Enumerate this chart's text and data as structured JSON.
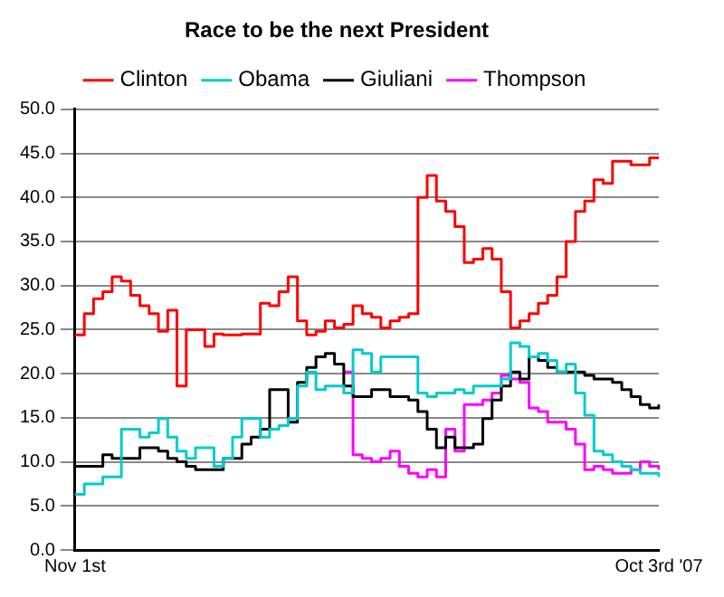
{
  "chart_data": {
    "type": "step",
    "title": "Race to be the next President",
    "categories": [
      "Nov 1st",
      null,
      null,
      null,
      null,
      null,
      null,
      null,
      null,
      null,
      null,
      null,
      null,
      null,
      null,
      null,
      null,
      null,
      null,
      null,
      null,
      null,
      null,
      null,
      null,
      null,
      null,
      null,
      null,
      null,
      null,
      null,
      null,
      null,
      null,
      null,
      null,
      null,
      null,
      null,
      null,
      null,
      null,
      null,
      null,
      null,
      null,
      null,
      null,
      null,
      null,
      null,
      null,
      null,
      null,
      null,
      null,
      null,
      null,
      null,
      null,
      null,
      null,
      "Oct 3rd '07"
    ],
    "series": [
      {
        "name": "Clinton",
        "color": "#ff0000",
        "values": [
          24.4,
          26.8,
          28.5,
          29.3,
          31.0,
          30.5,
          28.9,
          27.7,
          26.8,
          24.8,
          27.2,
          18.6,
          25.0,
          25.0,
          23.1,
          24.5,
          24.4,
          24.4,
          24.5,
          24.5,
          28.0,
          27.7,
          29.3,
          31.0,
          26.0,
          24.4,
          24.8,
          26.0,
          25.2,
          25.6,
          27.7,
          26.8,
          26.4,
          25.2,
          26.0,
          26.4,
          26.8,
          40.0,
          42.5,
          39.6,
          38.4,
          36.7,
          32.6,
          33.0,
          34.2,
          33.0,
          29.3,
          25.2,
          26.0,
          26.8,
          28.0,
          28.9,
          31.0,
          35.0,
          38.4,
          39.6,
          42.0,
          41.6,
          44.1,
          44.1,
          43.7,
          43.7,
          44.5,
          44.5
        ]
      },
      {
        "name": "Obama",
        "color": "#00cccc",
        "values": [
          6.3,
          7.5,
          7.5,
          8.3,
          8.3,
          13.7,
          13.7,
          12.8,
          13.3,
          14.9,
          12.8,
          11.2,
          10.4,
          11.6,
          11.6,
          9.5,
          10.4,
          12.8,
          14.9,
          14.9,
          12.8,
          13.7,
          14.1,
          14.9,
          18.6,
          20.2,
          18.2,
          18.6,
          18.6,
          17.8,
          22.7,
          22.3,
          20.2,
          21.9,
          21.9,
          21.9,
          21.9,
          17.8,
          17.4,
          17.8,
          17.8,
          18.2,
          17.8,
          18.6,
          18.6,
          18.6,
          19.4,
          23.5,
          23.1,
          21.9,
          22.3,
          21.5,
          20.2,
          21.1,
          17.8,
          15.3,
          11.2,
          10.8,
          10.0,
          9.5,
          9.1,
          8.7,
          8.7,
          8.3
        ]
      },
      {
        "name": "Giuliani",
        "color": "#000000",
        "values": [
          9.5,
          9.5,
          9.5,
          10.8,
          10.4,
          10.4,
          10.4,
          11.6,
          11.6,
          11.2,
          10.4,
          10.0,
          9.5,
          9.1,
          9.1,
          9.1,
          10.4,
          10.4,
          12.0,
          12.8,
          13.7,
          18.2,
          18.2,
          14.5,
          19.0,
          20.7,
          21.9,
          22.3,
          21.1,
          18.6,
          17.4,
          17.4,
          18.2,
          18.2,
          17.4,
          17.4,
          17.0,
          15.7,
          13.7,
          11.6,
          12.8,
          11.6,
          11.6,
          12.0,
          14.9,
          17.0,
          18.6,
          20.2,
          19.4,
          21.9,
          21.5,
          20.7,
          20.2,
          20.2,
          20.2,
          19.8,
          19.4,
          19.4,
          19.0,
          18.2,
          17.4,
          16.5,
          16.1,
          16.5
        ]
      },
      {
        "name": "Thompson",
        "color": "#ff00ff",
        "values": [
          null,
          null,
          null,
          null,
          null,
          null,
          null,
          null,
          null,
          null,
          null,
          null,
          null,
          null,
          null,
          null,
          null,
          null,
          null,
          null,
          null,
          null,
          null,
          null,
          null,
          null,
          null,
          null,
          null,
          20.2,
          10.8,
          10.4,
          10.0,
          10.4,
          11.2,
          9.5,
          8.7,
          8.3,
          9.1,
          8.3,
          13.7,
          11.2,
          16.5,
          16.5,
          17.0,
          17.8,
          19.8,
          19.4,
          19.0,
          16.1,
          15.7,
          14.5,
          14.5,
          13.7,
          12.0,
          9.1,
          9.5,
          9.1,
          8.7,
          8.7,
          9.1,
          10.0,
          9.5,
          9.1
        ]
      }
    ],
    "ylim": [
      0,
      50
    ],
    "yticks": [
      {
        "value": 0,
        "label": "0.0"
      },
      {
        "value": 5,
        "label": "5.0"
      },
      {
        "value": 10,
        "label": "10.0"
      },
      {
        "value": 15,
        "label": "15.0"
      },
      {
        "value": 20,
        "label": "20.0"
      },
      {
        "value": 25,
        "label": "25.0"
      },
      {
        "value": 30,
        "label": "30.0"
      },
      {
        "value": 35,
        "label": "35.0"
      },
      {
        "value": 40,
        "label": "40.0"
      },
      {
        "value": 45,
        "label": "45.0"
      },
      {
        "value": 50,
        "label": "50.0"
      }
    ],
    "grid": "y",
    "legend": "top",
    "marker": "none",
    "line_style": "solid"
  }
}
